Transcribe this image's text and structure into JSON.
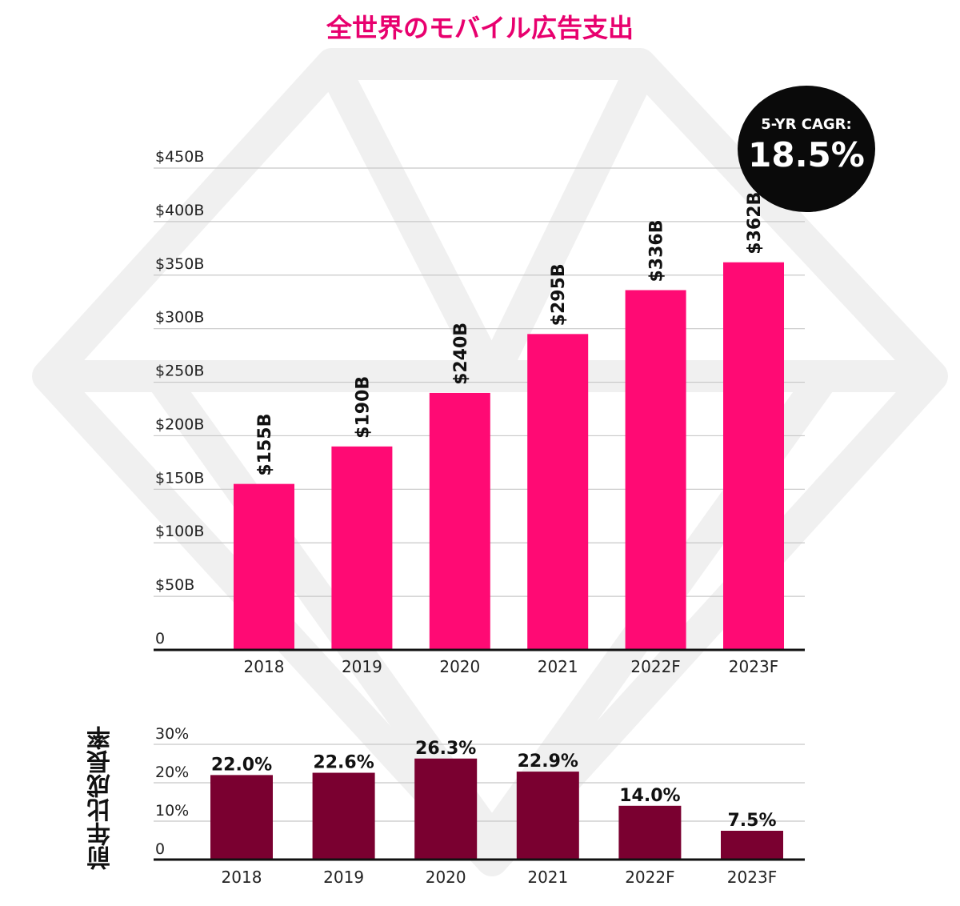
{
  "chart_data": [
    {
      "type": "bar",
      "title": "全世界のモバイル広告支出",
      "categories": [
        "2018",
        "2019",
        "2020",
        "2021",
        "2022F",
        "2023F"
      ],
      "values": [
        155,
        190,
        240,
        295,
        336,
        362
      ],
      "value_labels": [
        "$155B",
        "$190B",
        "$240B",
        "$295B",
        "$336B",
        "$362B"
      ],
      "unit": "billion USD",
      "ylim": [
        0,
        450
      ],
      "yticks": [
        0,
        50,
        100,
        150,
        200,
        250,
        300,
        350,
        400,
        450
      ],
      "ytick_labels": [
        "0",
        "$50B",
        "$100B",
        "$150B",
        "$200B",
        "$250B",
        "$300B",
        "$350B",
        "$400B",
        "$450B"
      ],
      "grid": true,
      "bar_color": "#ff0a74",
      "annotation": {
        "label": "5-YR CAGR:",
        "value": "18.5%",
        "placement": "top-right"
      }
    },
    {
      "type": "bar",
      "title": "前年比成長率",
      "categories": [
        "2018",
        "2019",
        "2020",
        "2021",
        "2022F",
        "2023F"
      ],
      "values": [
        22.0,
        22.6,
        26.3,
        22.9,
        14.0,
        7.5
      ],
      "value_labels": [
        "22.0%",
        "22.6%",
        "26.3%",
        "22.9%",
        "14.0%",
        "7.5%"
      ],
      "unit": "percent",
      "ylim": [
        0,
        30
      ],
      "yticks": [
        0,
        10,
        20,
        30
      ],
      "ytick_labels": [
        "0",
        "10%",
        "20%",
        "30%"
      ],
      "grid": true,
      "bar_color": "#7a0030"
    }
  ]
}
